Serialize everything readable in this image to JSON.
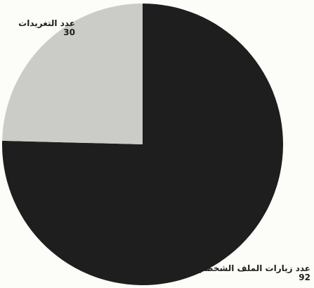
{
  "chart_data": {
    "type": "pie",
    "title": "",
    "slices": [
      {
        "label": "عدد زيارات الملف الشخصي",
        "value": 92,
        "color": "#1e1e1e"
      },
      {
        "label": "عدد التغريدات",
        "value": 30,
        "color": "#cbccc8"
      }
    ],
    "start_angle_deg": 0,
    "direction": "clockwise",
    "legend": "none"
  }
}
